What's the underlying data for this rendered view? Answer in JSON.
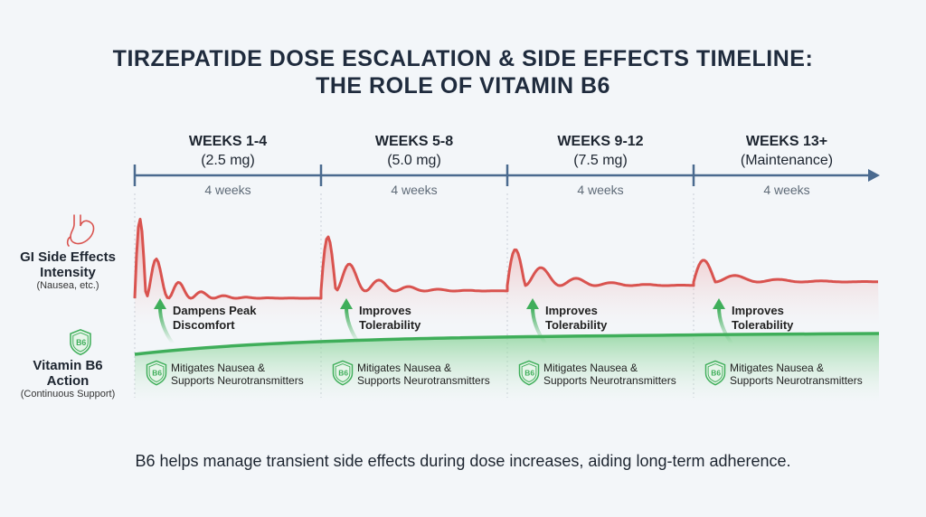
{
  "title_lines": [
    "TIRZEPATIDE DOSE ESCALATION & SIDE EFFECTS TIMELINE:",
    "THE ROLE OF VITAMIN B6"
  ],
  "phases": [
    {
      "weeks": "WEEKS 1-4",
      "dose": "(2.5 mg)",
      "duration": "4 weeks",
      "note": [
        "Dampens Peak",
        "Discomfort"
      ],
      "b6": [
        "Mitigates Nausea &",
        "Supports Neurotransmitters"
      ]
    },
    {
      "weeks": "WEEKS 5-8",
      "dose": "(5.0 mg)",
      "duration": "4 weeks",
      "note": [
        "Improves",
        "Tolerability"
      ],
      "b6": [
        "Mitigates Nausea &",
        "Supports Neurotransmitters"
      ]
    },
    {
      "weeks": "WEEKS 9-12",
      "dose": "(7.5 mg)",
      "duration": "4 weeks",
      "note": [
        "Improves",
        "Tolerability"
      ],
      "b6": [
        "Mitigates Nausea &",
        "Supports Neurotransmitters"
      ]
    },
    {
      "weeks": "WEEKS 13+",
      "dose": "(Maintenance)",
      "duration": "4 weeks",
      "note": [
        "Improves",
        "Tolerability"
      ],
      "b6": [
        "Mitigates Nausea &",
        "Supports Neurotransmitters"
      ]
    }
  ],
  "rows": {
    "gi": {
      "title": [
        "GI Side Effects",
        "Intensity"
      ],
      "subtitle": "(Nausea, etc.)",
      "icon": "stomach-icon"
    },
    "b6": {
      "title": [
        "Vitamin B6",
        "Action"
      ],
      "subtitle": "(Continuous Support)",
      "icon": "b6-shield-icon",
      "badge": "B6"
    }
  },
  "footer": "B6 helps manage transient side effects during dose increases, aiding long-term adherence.",
  "colors": {
    "title": "#1f2b3d",
    "axis": "#4a6a8f",
    "gi": "#d9534f",
    "b6": "#3fae5a"
  }
}
